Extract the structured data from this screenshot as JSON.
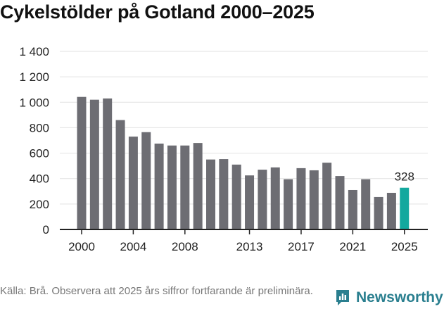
{
  "title": "Cykelstölder på Gotland 2000–2025",
  "source": "Källa: Brå. Observera att 2025 års siffror fortfarande är preliminära.",
  "brand": "Newsworthy",
  "colors": {
    "bar": "#6d6d73",
    "highlight": "#13a89e",
    "grid": "#e2e2e2",
    "axis": "#222222",
    "brand": "#2a7f8f"
  },
  "chart_data": {
    "type": "bar",
    "title": "Cykelstölder på Gotland 2000–2025",
    "xlabel": "",
    "ylabel": "",
    "ylim": [
      0,
      1400
    ],
    "yticks": [
      0,
      200,
      400,
      600,
      800,
      1000,
      1200,
      1400
    ],
    "ytick_labels": [
      "0",
      "200",
      "400",
      "600",
      "800",
      "1 000",
      "1 200",
      "1 400"
    ],
    "xtick_labels": [
      "2000",
      "2004",
      "2008",
      "2013",
      "2017",
      "2021",
      "2025"
    ],
    "grid": true,
    "categories": [
      "2000",
      "2001",
      "2002",
      "2003",
      "2004",
      "2005",
      "2006",
      "2007",
      "2008",
      "2009",
      "2010",
      "2011",
      "2012",
      "2013",
      "2014",
      "2015",
      "2016",
      "2017",
      "2018",
      "2019",
      "2020",
      "2021",
      "2022",
      "2023",
      "2024",
      "2025"
    ],
    "values": [
      1042,
      1020,
      1030,
      860,
      730,
      765,
      675,
      660,
      660,
      680,
      550,
      553,
      510,
      425,
      470,
      488,
      395,
      482,
      465,
      525,
      420,
      310,
      395,
      255,
      288,
      328
    ],
    "highlight_index": 25,
    "annotations": [
      {
        "category": "2025",
        "text": "328"
      }
    ]
  }
}
